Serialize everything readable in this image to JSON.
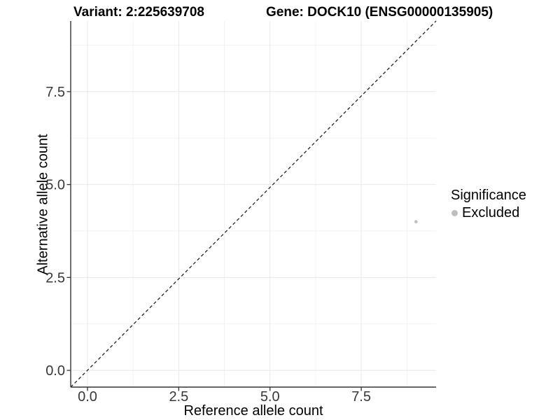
{
  "title": {
    "variant": "Variant: 2:225639708",
    "gene": "Gene: DOCK10 (ENSG00000135905)"
  },
  "x_axis": {
    "label": "Reference allele count",
    "tick_labels": [
      "0.0",
      "2.5",
      "5.0",
      "7.5"
    ]
  },
  "y_axis": {
    "label": "Alternative allele count",
    "tick_labels": [
      "0.0",
      "2.5",
      "5.0",
      "7.5"
    ]
  },
  "legend": {
    "title": "Significance",
    "items": [
      {
        "label": "Excluded",
        "color": "#bebebe"
      }
    ]
  },
  "chart_data": {
    "type": "scatter",
    "title": "Variant: 2:225639708    Gene: DOCK10 (ENSG00000135905)",
    "xlabel": "Reference allele count",
    "ylabel": "Alternative allele count",
    "x_ticks": [
      0,
      2.5,
      5,
      7.5
    ],
    "y_ticks": [
      0,
      2.5,
      5,
      7.5
    ],
    "x_minor_ticks": [
      1.25,
      3.75,
      6.25,
      8.75
    ],
    "y_minor_ticks": [
      1.25,
      3.75,
      6.25,
      8.75
    ],
    "xlim": [
      -0.46,
      9.55
    ],
    "ylim": [
      -0.45,
      9.4
    ],
    "grid": true,
    "legend_position": "right",
    "series": [
      {
        "name": "Excluded",
        "color": "#bebebe",
        "points": [
          {
            "x": 9,
            "y": 4
          }
        ]
      }
    ],
    "reference_line": {
      "type": "identity",
      "slope": 1,
      "intercept": 0,
      "style": "dashed",
      "color": "#222222"
    }
  },
  "colors": {
    "background": "#ffffff",
    "axis_line": "#333333",
    "tick_mark": "#333333",
    "tick_label": "#383838",
    "grid_major": "#e8e8e8",
    "grid_minor": "#f2f2f2",
    "point": "#bebebe"
  }
}
